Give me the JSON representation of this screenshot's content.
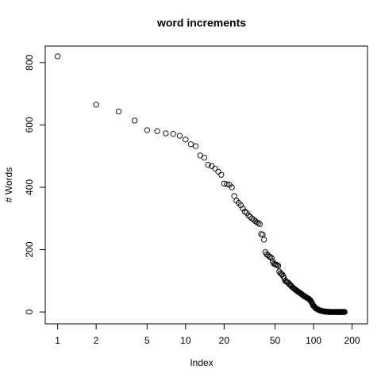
{
  "chart_data": {
    "type": "scatter",
    "title": "word increments",
    "x_label": "Index",
    "y_label": "# Words",
    "x": [
      1,
      2,
      3,
      4,
      5,
      6,
      7,
      8,
      9,
      10,
      11,
      12,
      13,
      14,
      15,
      16,
      17,
      18,
      19,
      20,
      21,
      22,
      23,
      24,
      25,
      26,
      27,
      28,
      29,
      30,
      31,
      32,
      33,
      34,
      35,
      36,
      37,
      38,
      39,
      40,
      41,
      42,
      43,
      44,
      45,
      46,
      47,
      48,
      49,
      50,
      51,
      52,
      53,
      54,
      55,
      56,
      57,
      58,
      59,
      60,
      61,
      62,
      63,
      64,
      65,
      66,
      67,
      68,
      69,
      70,
      71,
      72,
      73,
      74,
      75,
      76,
      77,
      78,
      79,
      80,
      81,
      82,
      83,
      84,
      85,
      86,
      87,
      88,
      89,
      90,
      91,
      92,
      93,
      94,
      95,
      96,
      97,
      98,
      99,
      100,
      101,
      102,
      103,
      104,
      105,
      106,
      107,
      108,
      109,
      110,
      111,
      112,
      113,
      114,
      115,
      116,
      117,
      118,
      119,
      120,
      121,
      122,
      123,
      124,
      125,
      126,
      127,
      128,
      129,
      130,
      131,
      132,
      133,
      134,
      135,
      136,
      137,
      138,
      139,
      140,
      141,
      142,
      143,
      144,
      145,
      146,
      147,
      148,
      149,
      150,
      151,
      152,
      153,
      154,
      155,
      156,
      157,
      158,
      159,
      160,
      161,
      162,
      163,
      164,
      165,
      166,
      167,
      168,
      169,
      170,
      171,
      172,
      173,
      174,
      175
    ],
    "values": [
      820,
      665,
      643,
      614,
      583,
      580,
      573,
      571,
      565,
      553,
      538,
      532,
      502,
      495,
      472,
      468,
      460,
      450,
      440,
      412,
      410,
      408,
      400,
      372,
      357,
      350,
      342,
      332,
      322,
      318,
      310,
      305,
      300,
      296,
      292,
      288,
      285,
      282,
      250,
      248,
      232,
      192,
      185,
      182,
      178,
      176,
      173,
      162,
      155,
      153,
      152,
      150,
      148,
      130,
      125,
      122,
      120,
      115,
      108,
      100,
      98,
      96,
      95,
      92,
      88,
      86,
      84,
      80,
      78,
      76,
      74,
      72,
      70,
      68,
      66,
      65,
      63,
      62,
      60,
      58,
      57,
      55,
      53,
      52,
      50,
      49,
      48,
      46,
      45,
      44,
      43,
      42,
      40,
      38,
      36,
      33,
      30,
      26,
      22,
      20,
      18,
      16,
      14,
      12,
      11,
      10,
      9,
      8,
      7,
      6,
      6,
      5,
      5,
      4,
      4,
      3,
      3,
      3,
      2,
      2,
      2,
      2,
      1,
      1,
      1,
      1,
      1,
      1,
      1,
      1,
      0,
      0,
      0,
      0,
      0,
      0,
      0,
      0,
      0,
      0,
      0,
      0,
      0,
      0,
      0,
      0,
      0,
      0,
      0,
      0,
      0,
      0,
      0,
      0,
      0,
      0,
      0,
      0,
      0,
      0,
      0,
      0,
      0,
      0,
      0,
      0,
      0,
      0,
      0,
      0,
      0,
      0,
      0,
      0,
      0
    ],
    "color": "#000000",
    "xlog": true,
    "xlim": [
      0.8,
      264
    ],
    "xticks": [
      1,
      2,
      5,
      10,
      20,
      50,
      100,
      200
    ],
    "ylim": [
      -38,
      853
    ],
    "yticks": [
      0,
      200,
      400,
      600,
      800
    ]
  }
}
